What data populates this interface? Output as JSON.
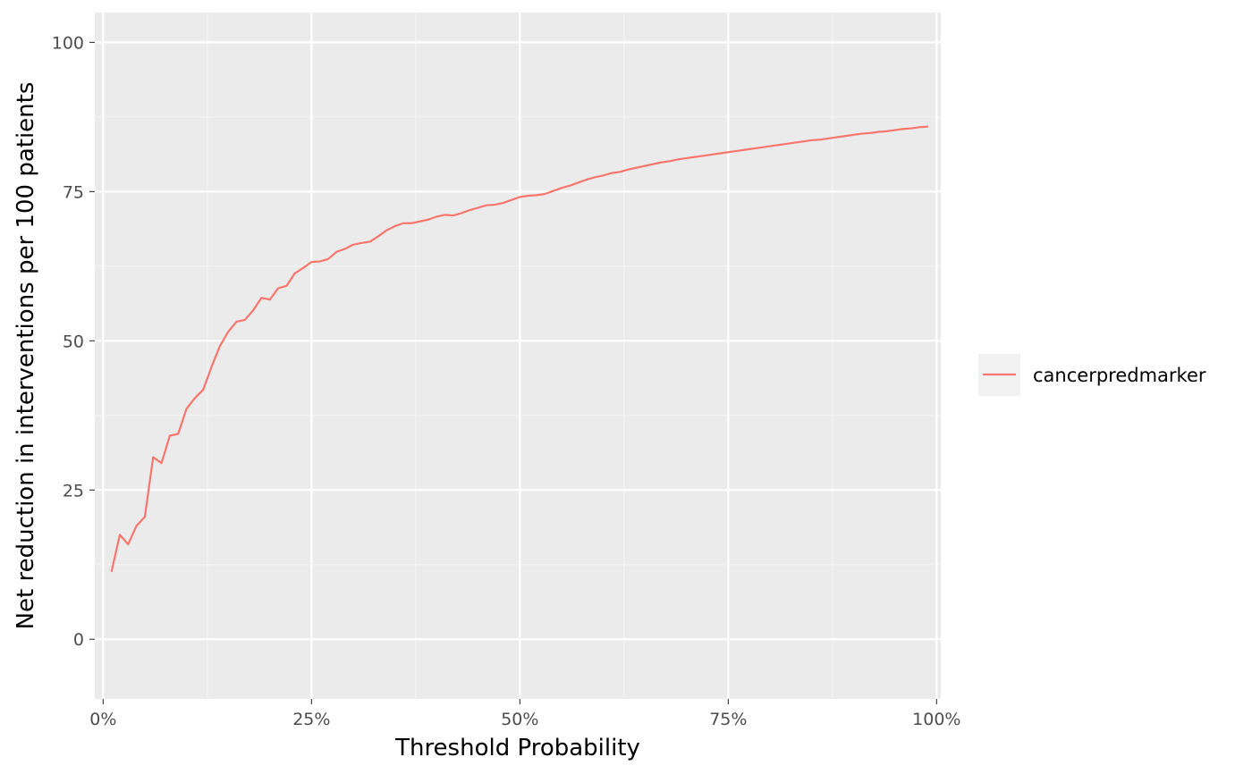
{
  "chart_data": {
    "type": "line",
    "title": "",
    "xlabel": "Threshold Probability",
    "ylabel": "Net reduction in interventions per 100 patients",
    "xlim": [
      -0.01,
      1.005
    ],
    "ylim": [
      -10,
      105
    ],
    "x_ticks": [
      {
        "value": 0,
        "label": "0%"
      },
      {
        "value": 0.25,
        "label": "25%"
      },
      {
        "value": 0.5,
        "label": "50%"
      },
      {
        "value": 0.75,
        "label": "75%"
      },
      {
        "value": 1,
        "label": "100%"
      }
    ],
    "y_ticks": [
      {
        "value": 0,
        "label": "0"
      },
      {
        "value": 25,
        "label": "25"
      },
      {
        "value": 50,
        "label": "50"
      },
      {
        "value": 75,
        "label": "75"
      },
      {
        "value": 100,
        "label": "100"
      }
    ],
    "grid": true,
    "legend_position": "right",
    "series": [
      {
        "name": "cancerpredmarker",
        "color": "#F8766D",
        "points": [
          [
            0.01,
            11.3
          ],
          [
            0.02,
            17.5
          ],
          [
            0.03,
            15.9
          ],
          [
            0.04,
            19.0
          ],
          [
            0.05,
            20.5
          ],
          [
            0.06,
            30.5
          ],
          [
            0.07,
            29.5
          ],
          [
            0.08,
            34.1
          ],
          [
            0.09,
            34.4
          ],
          [
            0.1,
            38.6
          ],
          [
            0.11,
            40.4
          ],
          [
            0.12,
            41.8
          ],
          [
            0.13,
            45.6
          ],
          [
            0.14,
            49.1
          ],
          [
            0.15,
            51.5
          ],
          [
            0.16,
            53.2
          ],
          [
            0.17,
            53.5
          ],
          [
            0.18,
            55.1
          ],
          [
            0.19,
            57.2
          ],
          [
            0.2,
            56.9
          ],
          [
            0.21,
            58.8
          ],
          [
            0.22,
            59.2
          ],
          [
            0.23,
            61.3
          ],
          [
            0.24,
            62.2
          ],
          [
            0.25,
            63.2
          ],
          [
            0.26,
            63.3
          ],
          [
            0.27,
            63.7
          ],
          [
            0.28,
            64.9
          ],
          [
            0.29,
            65.4
          ],
          [
            0.3,
            66.1
          ],
          [
            0.31,
            66.4
          ],
          [
            0.32,
            66.6
          ],
          [
            0.33,
            67.5
          ],
          [
            0.34,
            68.5
          ],
          [
            0.35,
            69.2
          ],
          [
            0.36,
            69.7
          ],
          [
            0.37,
            69.7
          ],
          [
            0.38,
            70.0
          ],
          [
            0.39,
            70.3
          ],
          [
            0.4,
            70.8
          ],
          [
            0.41,
            71.1
          ],
          [
            0.42,
            71.0
          ],
          [
            0.43,
            71.4
          ],
          [
            0.44,
            71.9
          ],
          [
            0.45,
            72.3
          ],
          [
            0.46,
            72.7
          ],
          [
            0.47,
            72.8
          ],
          [
            0.48,
            73.1
          ],
          [
            0.49,
            73.6
          ],
          [
            0.5,
            74.1
          ],
          [
            0.51,
            74.3
          ],
          [
            0.52,
            74.4
          ],
          [
            0.53,
            74.6
          ],
          [
            0.54,
            75.1
          ],
          [
            0.55,
            75.6
          ],
          [
            0.56,
            76.0
          ],
          [
            0.57,
            76.5
          ],
          [
            0.58,
            77.0
          ],
          [
            0.59,
            77.4
          ],
          [
            0.6,
            77.7
          ],
          [
            0.61,
            78.1
          ],
          [
            0.62,
            78.3
          ],
          [
            0.63,
            78.7
          ],
          [
            0.64,
            79.0
          ],
          [
            0.65,
            79.3
          ],
          [
            0.66,
            79.6
          ],
          [
            0.67,
            79.9
          ],
          [
            0.68,
            80.1
          ],
          [
            0.69,
            80.4
          ],
          [
            0.7,
            80.6
          ],
          [
            0.71,
            80.8
          ],
          [
            0.72,
            81.0
          ],
          [
            0.73,
            81.2
          ],
          [
            0.74,
            81.4
          ],
          [
            0.75,
            81.6
          ],
          [
            0.76,
            81.8
          ],
          [
            0.77,
            82.0
          ],
          [
            0.78,
            82.2
          ],
          [
            0.79,
            82.4
          ],
          [
            0.8,
            82.6
          ],
          [
            0.81,
            82.8
          ],
          [
            0.82,
            83.0
          ],
          [
            0.83,
            83.2
          ],
          [
            0.84,
            83.4
          ],
          [
            0.85,
            83.6
          ],
          [
            0.86,
            83.7
          ],
          [
            0.87,
            83.9
          ],
          [
            0.88,
            84.1
          ],
          [
            0.89,
            84.3
          ],
          [
            0.9,
            84.5
          ],
          [
            0.91,
            84.7
          ],
          [
            0.92,
            84.8
          ],
          [
            0.93,
            85.0
          ],
          [
            0.94,
            85.1
          ],
          [
            0.95,
            85.3
          ],
          [
            0.96,
            85.5
          ],
          [
            0.97,
            85.6
          ],
          [
            0.98,
            85.8
          ],
          [
            0.99,
            85.9
          ]
        ]
      }
    ]
  },
  "colors": {
    "panel_background": "#EBEBEB",
    "grid_major": "#FFFFFF",
    "grid_minor": "#F5F5F5",
    "tick_text": "#4D4D4D",
    "tick_mark": "#333333",
    "legend_key_background": "#F2F2F2"
  }
}
